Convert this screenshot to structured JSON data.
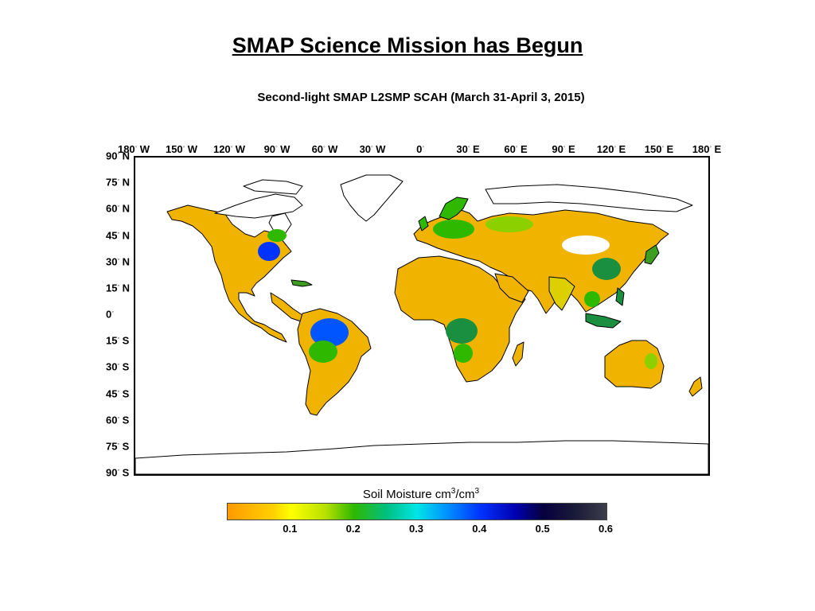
{
  "slide": {
    "title": "SMAP Science Mission has Begun"
  },
  "map": {
    "title": "Second-light SMAP L2SMP SCAH (March 31-April 3, 2015)",
    "projection": "equirectangular",
    "lon_range": [
      -180,
      180
    ],
    "lat_range": [
      -90,
      90
    ],
    "lon_labels": [
      {
        "lon": -180,
        "text": "180",
        "hemi": " W"
      },
      {
        "lon": -150,
        "text": "150",
        "hemi": " W"
      },
      {
        "lon": -120,
        "text": "120",
        "hemi": " W"
      },
      {
        "lon": -90,
        "text": "90",
        "hemi": " W"
      },
      {
        "lon": -60,
        "text": "60",
        "hemi": " W"
      },
      {
        "lon": -30,
        "text": "30",
        "hemi": " W"
      },
      {
        "lon": 0,
        "text": "0",
        "hemi": ""
      },
      {
        "lon": 30,
        "text": "30",
        "hemi": " E"
      },
      {
        "lon": 60,
        "text": "60",
        "hemi": " E"
      },
      {
        "lon": 90,
        "text": "90",
        "hemi": " E"
      },
      {
        "lon": 120,
        "text": "120",
        "hemi": " E"
      },
      {
        "lon": 150,
        "text": "150",
        "hemi": " E"
      },
      {
        "lon": 180,
        "text": "180",
        "hemi": " E"
      }
    ],
    "lat_labels": [
      {
        "lat": 90,
        "text": "90",
        "hemi": " N"
      },
      {
        "lat": 75,
        "text": "75",
        "hemi": " N"
      },
      {
        "lat": 60,
        "text": "60",
        "hemi": " N"
      },
      {
        "lat": 45,
        "text": "45",
        "hemi": " N"
      },
      {
        "lat": 30,
        "text": "30",
        "hemi": " N"
      },
      {
        "lat": 15,
        "text": "15",
        "hemi": " N"
      },
      {
        "lat": 0,
        "text": "0",
        "hemi": ""
      },
      {
        "lat": -15,
        "text": "15",
        "hemi": " S"
      },
      {
        "lat": -30,
        "text": "30",
        "hemi": " S"
      },
      {
        "lat": -45,
        "text": "45",
        "hemi": " S"
      },
      {
        "lat": -60,
        "text": "60",
        "hemi": " S"
      },
      {
        "lat": -75,
        "text": "75",
        "hemi": " S"
      },
      {
        "lat": -90,
        "text": "90",
        "hemi": " S"
      }
    ],
    "colors": {
      "dry": "#ffa500",
      "moderate": "#ffff00",
      "mid": "#2eb800",
      "wet": "#0033ff",
      "saturated": "#3d3d4a",
      "coastline": "#000000"
    }
  },
  "colorbar": {
    "label": "Soil Moisture cm",
    "label_sup1": "3",
    "label_mid": "/cm",
    "label_sup2": "3",
    "range": [
      0,
      0.6
    ],
    "ticks": [
      "0.1",
      "0.2",
      "0.3",
      "0.4",
      "0.5",
      "0.6"
    ]
  }
}
